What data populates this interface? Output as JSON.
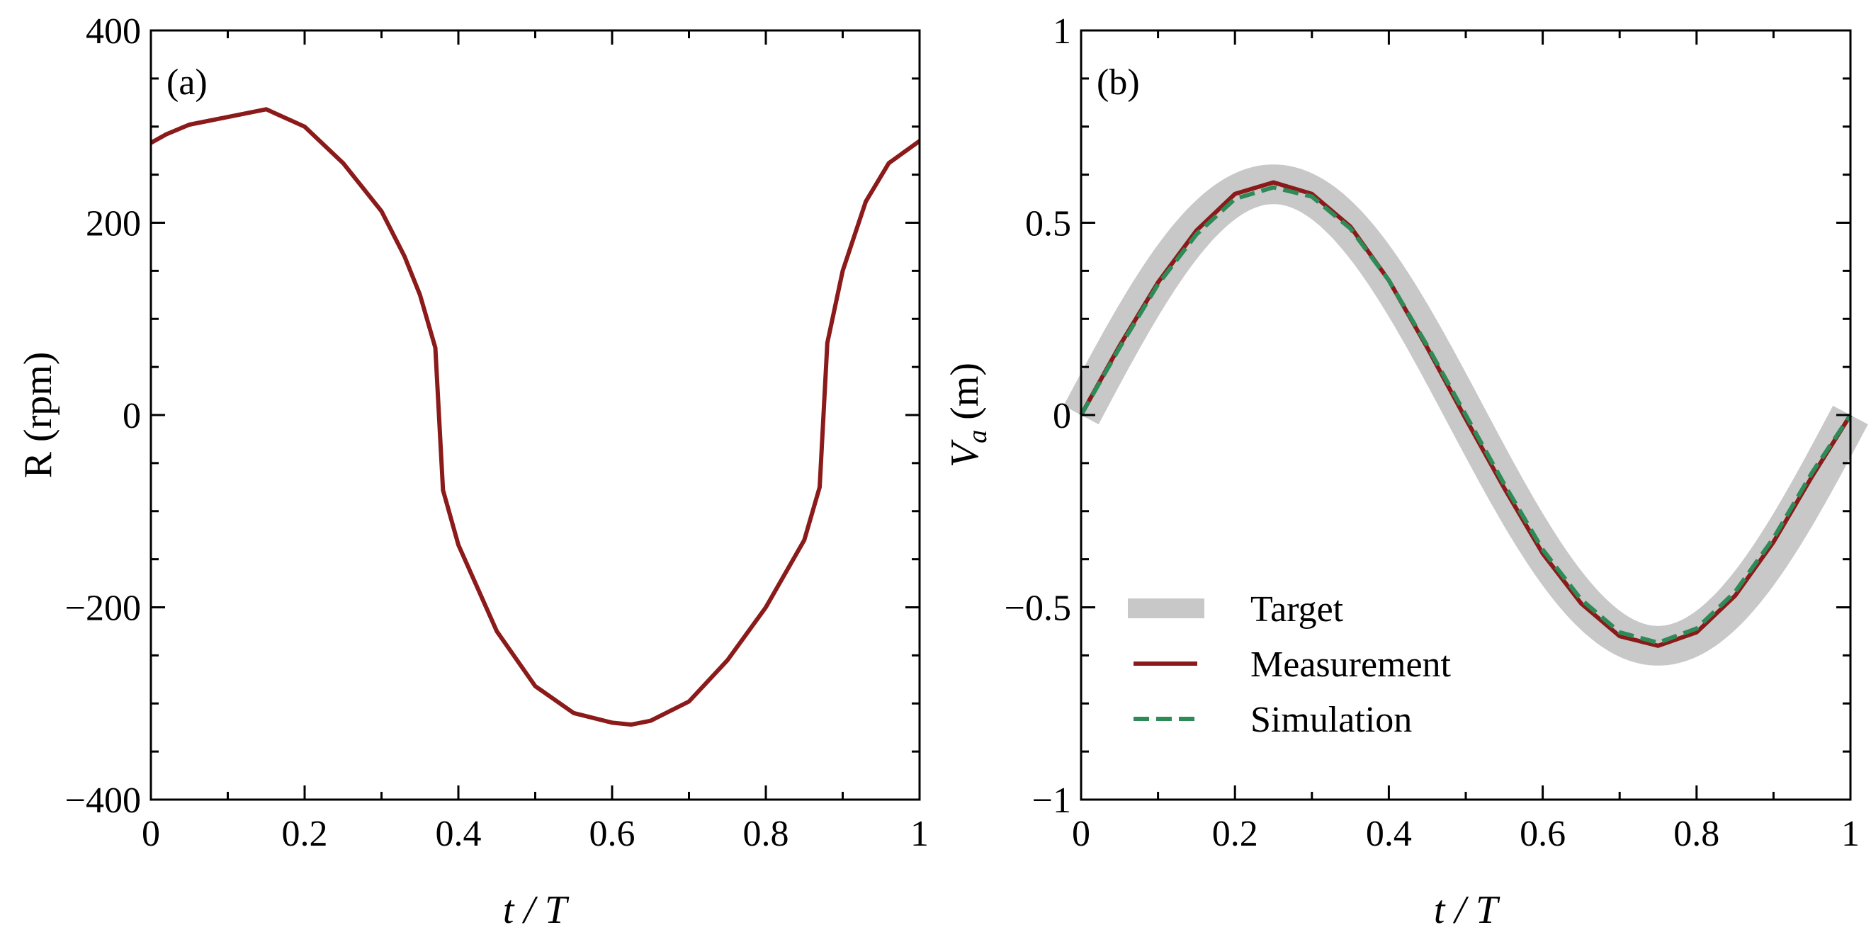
{
  "chart_data": [
    {
      "type": "line",
      "panel": "(a)",
      "xlabel": "t / T",
      "ylabel": "R (rpm)",
      "xlim": [
        0,
        1
      ],
      "ylim": [
        -400,
        400
      ],
      "xticks": [
        0,
        0.2,
        0.4,
        0.6,
        0.8,
        1
      ],
      "yticks": [
        -400,
        -200,
        0,
        200,
        400
      ],
      "xtick_labels": [
        "0",
        "0.2",
        "0.4",
        "0.6",
        "0.8",
        "1"
      ],
      "ytick_labels": [
        "−400",
        "−200",
        "0",
        "200",
        "400"
      ],
      "series": [
        {
          "name": "R",
          "color": "#8b1a1a",
          "x": [
            0,
            0.02,
            0.05,
            0.1,
            0.15,
            0.2,
            0.25,
            0.3,
            0.33,
            0.35,
            0.37,
            0.38,
            0.4,
            0.45,
            0.5,
            0.55,
            0.6,
            0.625,
            0.65,
            0.7,
            0.75,
            0.8,
            0.85,
            0.87,
            0.88,
            0.9,
            0.93,
            0.96,
            1.0
          ],
          "y": [
            283,
            292,
            302,
            310,
            318,
            300,
            262,
            212,
            165,
            125,
            70,
            -78,
            -135,
            -225,
            -282,
            -310,
            -320,
            -322,
            -318,
            -298,
            -255,
            -200,
            -130,
            -75,
            75,
            150,
            222,
            262,
            285
          ]
        }
      ]
    },
    {
      "type": "line",
      "panel": "(b)",
      "xlabel": "t / T",
      "ylabel": "V",
      "ylabel_sub": "a",
      "ylabel_unit": "(m)",
      "xlim": [
        0,
        1
      ],
      "ylim": [
        -1,
        1
      ],
      "xticks": [
        0,
        0.2,
        0.4,
        0.6,
        0.8,
        1
      ],
      "yticks": [
        -1,
        -0.5,
        0,
        0.5,
        1
      ],
      "xtick_labels": [
        "0",
        "0.2",
        "0.4",
        "0.6",
        "0.8",
        "1"
      ],
      "ytick_labels": [
        "−1",
        "−0.5",
        "0",
        "0.5",
        "1"
      ],
      "series": [
        {
          "name": "Target",
          "color": "#c8c8c8",
          "style": "band",
          "function": "0.6*sin(2*pi*t)",
          "amplitude": 0.6,
          "x": [
            0,
            0.05,
            0.1,
            0.15,
            0.2,
            0.25,
            0.3,
            0.35,
            0.4,
            0.45,
            0.5,
            0.55,
            0.6,
            0.65,
            0.7,
            0.75,
            0.8,
            0.85,
            0.9,
            0.95,
            1.0
          ],
          "y": [
            0,
            0.185,
            0.353,
            0.485,
            0.571,
            0.6,
            0.571,
            0.485,
            0.353,
            0.185,
            0,
            -0.185,
            -0.353,
            -0.485,
            -0.571,
            -0.6,
            -0.571,
            -0.485,
            -0.353,
            -0.185,
            0
          ]
        },
        {
          "name": "Measurement",
          "color": "#8b1a1a",
          "style": "solid",
          "x": [
            0,
            0.05,
            0.1,
            0.15,
            0.2,
            0.25,
            0.3,
            0.35,
            0.4,
            0.45,
            0.5,
            0.55,
            0.6,
            0.65,
            0.7,
            0.75,
            0.8,
            0.85,
            0.9,
            0.95,
            1.0
          ],
          "y": [
            0,
            0.18,
            0.345,
            0.48,
            0.575,
            0.605,
            0.575,
            0.49,
            0.35,
            0.175,
            -0.01,
            -0.19,
            -0.36,
            -0.49,
            -0.575,
            -0.6,
            -0.565,
            -0.47,
            -0.33,
            -0.16,
            0
          ]
        },
        {
          "name": "Simulation",
          "color": "#2e8b57",
          "style": "dashed",
          "x": [
            0,
            0.05,
            0.1,
            0.15,
            0.2,
            0.25,
            0.3,
            0.35,
            0.4,
            0.45,
            0.5,
            0.55,
            0.6,
            0.65,
            0.7,
            0.75,
            0.8,
            0.85,
            0.9,
            0.95,
            1.0
          ],
          "y": [
            0,
            0.175,
            0.34,
            0.47,
            0.562,
            0.592,
            0.568,
            0.485,
            0.35,
            0.18,
            0,
            -0.18,
            -0.35,
            -0.48,
            -0.565,
            -0.592,
            -0.555,
            -0.46,
            -0.32,
            -0.15,
            0
          ]
        }
      ],
      "legend": {
        "placement": "lower-left",
        "entries": [
          "Target",
          "Measurement",
          "Simulation"
        ]
      }
    }
  ]
}
